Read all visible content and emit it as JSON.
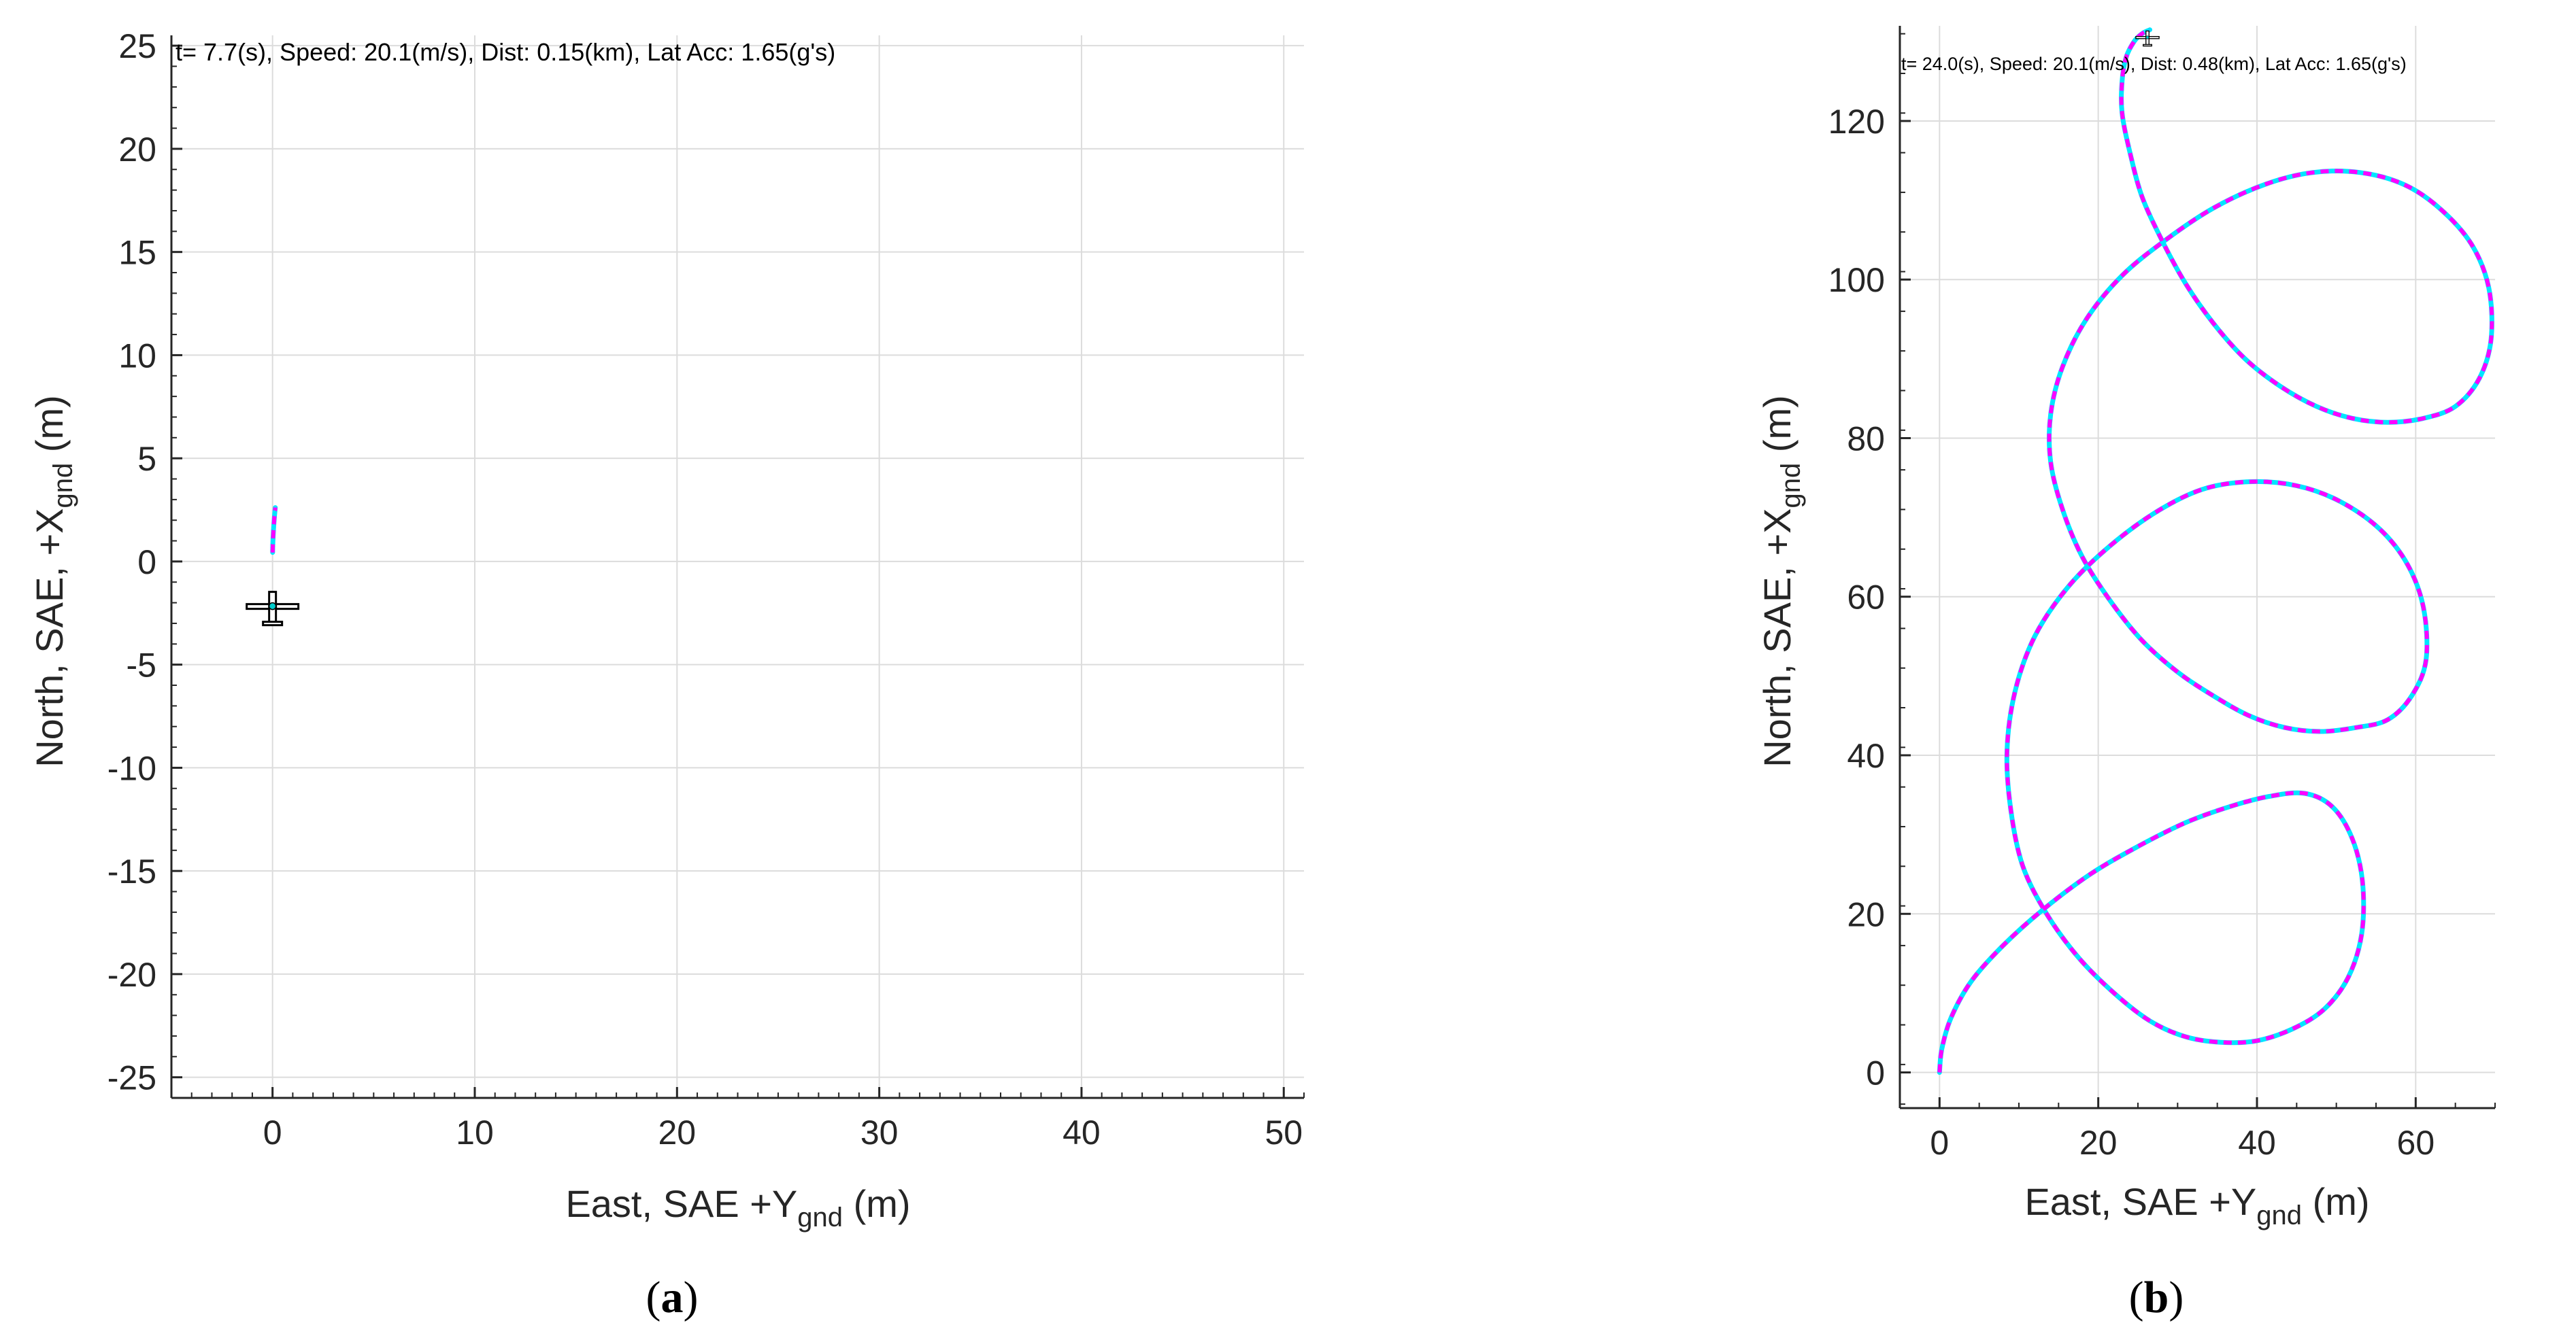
{
  "colors": {
    "path_primary": "#ff00ff",
    "path_secondary": "#00e5ff",
    "grid": "#dcdcdc",
    "axis": "#262626"
  },
  "panel_a": {
    "label_open": "(",
    "label_letter": "a",
    "label_close": ")",
    "status": "t=   7.7(s), Speed:  20.1(m/s), Dist: 0.15(km), Lat Acc: 1.65(g's)",
    "xlabel": {
      "main": "East, SAE +Y",
      "sub": "gnd",
      "unit": " (m)"
    },
    "ylabel": {
      "main": "North, SAE, +X",
      "sub": "gnd",
      "unit": " (m)"
    },
    "aircraft_icon": "airplane-icon"
  },
  "panel_b": {
    "label_open": "(",
    "label_letter": "b",
    "label_close": ")",
    "status": "t= 24.0(s), Speed:  20.1(m/s), Dist: 0.48(km), Lat Acc: 1.65(g's)",
    "xlabel": {
      "main": "East, SAE +Y",
      "sub": "gnd",
      "unit": " (m)"
    },
    "ylabel": {
      "main": "North, SAE, +X",
      "sub": "gnd",
      "unit": " (m)"
    },
    "aircraft_icon": "airplane-icon"
  },
  "chart_data": [
    {
      "type": "line",
      "title": "t=   7.7(s), Speed:  20.1(m/s), Dist: 0.15(km), Lat Acc: 1.65(g's)",
      "xlabel": "East, SAE +Ygnd (m)",
      "ylabel": "North, SAE, +Xgnd (m)",
      "xlim": [
        -5,
        51
      ],
      "ylim": [
        -26,
        25.5
      ],
      "xticks": [
        0,
        10,
        20,
        30,
        40,
        50
      ],
      "yticks": [
        -25,
        -20,
        -15,
        -10,
        -5,
        0,
        5,
        10,
        15,
        20,
        25
      ],
      "grid": true,
      "series": [
        {
          "shape": "circle",
          "center": [
            25,
            0
          ],
          "radius": 25,
          "start_angle_deg": 179,
          "end_angle_deg": 174,
          "color": "#ff00ff"
        }
      ],
      "aircraft_position": [
        0,
        -2.2
      ]
    },
    {
      "type": "line",
      "title": "t= 24.0(s), Speed:  20.1(m/s), Dist: 0.48(km), Lat Acc: 1.65(g's)",
      "xlabel": "East, SAE +Ygnd (m)",
      "ylabel": "North, SAE, +Xgnd (m)",
      "xlim": [
        -5,
        70
      ],
      "ylim": [
        -4.5,
        132
      ],
      "xticks": [
        0,
        20,
        40,
        60
      ],
      "yticks": [
        0,
        20,
        40,
        60,
        80,
        100,
        120
      ],
      "grid": true,
      "series": [
        {
          "shape": "trochoid",
          "x": [
            0,
            0.3,
            1.5,
            4,
            8,
            13,
            19,
            25,
            31,
            36.5,
            41.5,
            46,
            49.5,
            52,
            53.3,
            53.2,
            51.5,
            48.5,
            44.5,
            40,
            35.5,
            31,
            26.5,
            22,
            17.5,
            13.5,
            10.5,
            9,
            8.5,
            9.5,
            12,
            16,
            21,
            27,
            33,
            39,
            45,
            50.5,
            55.5,
            59,
            61,
            61.3,
            59.5,
            56.5,
            52.5,
            48,
            43.5,
            39,
            34.5,
            30,
            25.5,
            21.5,
            18,
            15.5,
            14,
            14,
            15.5,
            18.5,
            23,
            28.5,
            34.5,
            41,
            47,
            53,
            58.5,
            63,
            67,
            69.2,
            69.5,
            68,
            65,
            61,
            56.5,
            52,
            47.5,
            43,
            38.5,
            34.5,
            31,
            28,
            25.5,
            24,
            23,
            23,
            23.5,
            24.5,
            25.5,
            26.5
          ],
          "y": [
            0,
            3,
            7,
            11.5,
            16,
            20.5,
            25,
            28.5,
            31.5,
            33.5,
            34.8,
            35.2,
            33.5,
            29.5,
            24,
            17.5,
            12,
            8,
            5.5,
            4,
            3.8,
            4.5,
            6.5,
            10,
            14.5,
            20,
            26,
            33,
            40.5,
            48,
            55,
            61,
            66,
            70.5,
            73.5,
            74.5,
            74,
            72,
            68.5,
            64,
            58.5,
            52,
            47.5,
            44.5,
            43.5,
            43,
            43.5,
            45,
            47.5,
            50.5,
            54.5,
            59.5,
            65,
            71,
            77,
            83,
            89,
            95,
            100.5,
            105,
            109,
            112,
            113.5,
            113.5,
            112,
            109,
            104.5,
            99,
            92.5,
            87.5,
            84,
            82.5,
            82,
            82.5,
            84,
            86.5,
            90,
            94.5,
            99.5,
            105,
            110.5,
            116,
            121,
            125,
            128,
            130,
            131,
            131.5
          ],
          "color": "#ff00ff"
        }
      ],
      "aircraft_position": [
        26.2,
        130.5
      ]
    }
  ]
}
